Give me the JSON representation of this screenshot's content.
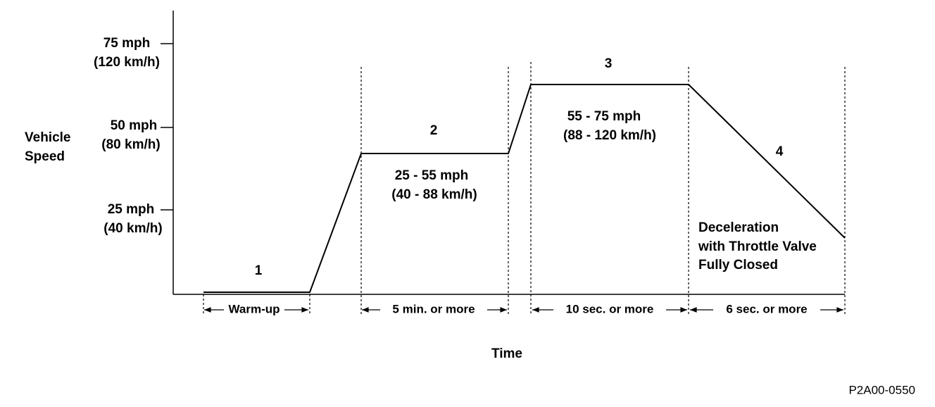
{
  "y_axis": {
    "label": [
      "Vehicle",
      "Speed"
    ],
    "ticks": [
      {
        "mph": "75 mph",
        "kmh": "(120 km/h)"
      },
      {
        "mph": "50 mph",
        "kmh": "(80 km/h)"
      },
      {
        "mph": "25 mph",
        "kmh": "(40 km/h)"
      }
    ]
  },
  "stages": [
    {
      "number": "1",
      "duration": "Warm-up"
    },
    {
      "number": "2",
      "speed": [
        "25 - 55 mph",
        "(40 - 88 km/h)"
      ],
      "duration": "5 min. or more"
    },
    {
      "number": "3",
      "speed": [
        "55 - 75 mph",
        "(88 - 120 km/h)"
      ],
      "duration": "10 sec. or more"
    },
    {
      "number": "4",
      "note": [
        "Deceleration",
        "with Throttle Valve",
        "Fully Closed"
      ],
      "duration": "6 sec. or more"
    }
  ],
  "x_axis": {
    "label": "Time"
  },
  "figure_id": "P2A00-0550"
}
